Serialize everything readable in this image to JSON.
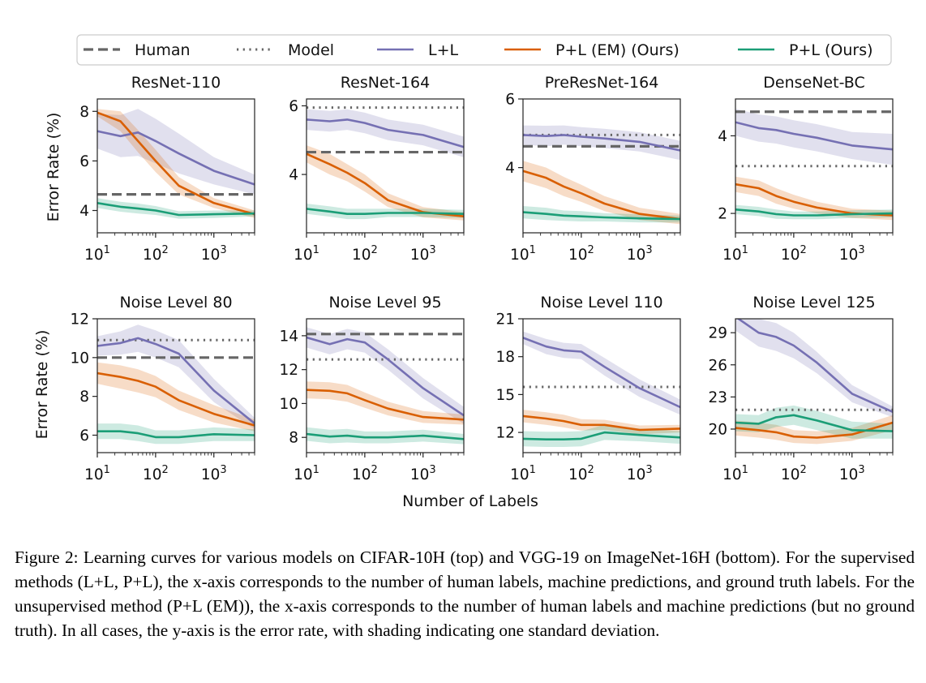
{
  "legend": {
    "entries": [
      {
        "label": "Human",
        "style": "dashed",
        "color": "#666666"
      },
      {
        "label": "Model",
        "style": "dotted",
        "color": "#666666"
      },
      {
        "label": "L+L",
        "style": "solid",
        "color": "#7570b3"
      },
      {
        "label": "P+L (EM) (Ours)",
        "style": "solid",
        "color": "#d95f02"
      },
      {
        "label": "P+L (Ours)",
        "style": "solid",
        "color": "#1b9e77"
      }
    ]
  },
  "axis_labels": {
    "y": "Error Rate (%)",
    "x": "Number of Labels"
  },
  "x_ticks": [
    "10",
    "10",
    "10"
  ],
  "x_tick_exponents": [
    "1",
    "2",
    "3"
  ],
  "caption": "Figure 2: Learning curves for various models on CIFAR-10H (top) and VGG-19 on ImageNet-16H (bottom). For the supervised methods (L+L, P+L), the x-axis corresponds to the number of human labels, machine predictions, and ground truth labels. For the unsupervised method (P+L (EM)), the x-axis corresponds to the number of human labels and machine predictions (but no ground truth). In all cases, the y-axis is the error rate, with shading indicating one standard deviation.",
  "chart_data": [
    {
      "type": "line",
      "title": "ResNet-110",
      "xscale": "log",
      "xlim": [
        10,
        5000
      ],
      "ylim": [
        3.1,
        8.5
      ],
      "yticks": [
        4,
        6,
        8
      ],
      "xticks": [
        10,
        100,
        1000
      ],
      "x": [
        10,
        25,
        50,
        100,
        250,
        1000,
        5000
      ],
      "human": 4.65,
      "model": null,
      "series": [
        {
          "name": "L+L",
          "values": [
            7.2,
            7.0,
            7.15,
            6.8,
            6.3,
            5.6,
            5.05
          ],
          "std": [
            0.7,
            0.85,
            0.95,
            0.9,
            0.8,
            0.55,
            0.4
          ]
        },
        {
          "name": "P+L (EM) (Ours)",
          "values": [
            7.95,
            7.6,
            6.8,
            6.0,
            5.0,
            4.3,
            3.85
          ],
          "std": [
            0.15,
            0.4,
            0.45,
            0.45,
            0.35,
            0.2,
            0.15
          ]
        },
        {
          "name": "P+L (Ours)",
          "values": [
            4.3,
            4.15,
            4.08,
            4.0,
            3.82,
            3.85,
            3.88
          ],
          "std": [
            0.2,
            0.2,
            0.2,
            0.18,
            0.15,
            0.15,
            0.12
          ]
        }
      ]
    },
    {
      "type": "line",
      "title": "ResNet-164",
      "xscale": "log",
      "xlim": [
        10,
        5000
      ],
      "ylim": [
        2.3,
        6.2
      ],
      "yticks": [
        4,
        6
      ],
      "xticks": [
        10,
        100,
        1000
      ],
      "x": [
        10,
        25,
        50,
        100,
        250,
        1000,
        5000
      ],
      "human": 4.65,
      "model": 5.95,
      "series": [
        {
          "name": "L+L",
          "values": [
            5.6,
            5.55,
            5.6,
            5.5,
            5.3,
            5.15,
            4.8
          ],
          "std": [
            0.3,
            0.3,
            0.3,
            0.3,
            0.3,
            0.3,
            0.3
          ]
        },
        {
          "name": "P+L (EM) (Ours)",
          "values": [
            4.6,
            4.3,
            4.05,
            3.75,
            3.25,
            2.9,
            2.78
          ],
          "std": [
            0.25,
            0.3,
            0.25,
            0.25,
            0.2,
            0.15,
            0.12
          ]
        },
        {
          "name": "P+L (Ours)",
          "values": [
            3.0,
            2.92,
            2.85,
            2.85,
            2.88,
            2.88,
            2.85
          ],
          "std": [
            0.15,
            0.15,
            0.15,
            0.15,
            0.12,
            0.12,
            0.12
          ]
        }
      ]
    },
    {
      "type": "line",
      "title": "PreResNet-164",
      "xscale": "log",
      "xlim": [
        10,
        5000
      ],
      "ylim": [
        2.1,
        6.0
      ],
      "yticks": [
        4,
        6
      ],
      "xticks": [
        10,
        100,
        1000
      ],
      "x": [
        10,
        25,
        50,
        100,
        250,
        1000,
        5000
      ],
      "human": 4.62,
      "model": 4.95,
      "series": [
        {
          "name": "L+L",
          "values": [
            4.95,
            4.92,
            4.95,
            4.9,
            4.85,
            4.75,
            4.5
          ],
          "std": [
            0.28,
            0.3,
            0.28,
            0.28,
            0.28,
            0.28,
            0.28
          ]
        },
        {
          "name": "P+L (EM) (Ours)",
          "values": [
            3.9,
            3.7,
            3.45,
            3.25,
            2.95,
            2.65,
            2.5
          ],
          "std": [
            0.3,
            0.3,
            0.28,
            0.25,
            0.22,
            0.18,
            0.15
          ]
        },
        {
          "name": "P+L (Ours)",
          "values": [
            2.7,
            2.65,
            2.6,
            2.58,
            2.55,
            2.52,
            2.5
          ],
          "std": [
            0.18,
            0.18,
            0.15,
            0.15,
            0.12,
            0.12,
            0.1
          ]
        }
      ]
    },
    {
      "type": "line",
      "title": "DenseNet-BC",
      "xscale": "log",
      "xlim": [
        10,
        5000
      ],
      "ylim": [
        1.5,
        4.95
      ],
      "yticks": [
        2,
        4
      ],
      "xticks": [
        10,
        100,
        1000
      ],
      "x": [
        10,
        25,
        50,
        100,
        250,
        1000,
        5000
      ],
      "human": 4.62,
      "model": 3.22,
      "series": [
        {
          "name": "L+L",
          "values": [
            4.35,
            4.2,
            4.15,
            4.05,
            3.95,
            3.75,
            3.65
          ],
          "std": [
            0.35,
            0.35,
            0.35,
            0.35,
            0.35,
            0.35,
            0.4
          ]
        },
        {
          "name": "P+L (EM) (Ours)",
          "values": [
            2.75,
            2.65,
            2.45,
            2.3,
            2.15,
            2.0,
            1.95
          ],
          "std": [
            0.2,
            0.2,
            0.2,
            0.18,
            0.15,
            0.12,
            0.12
          ]
        },
        {
          "name": "P+L (Ours)",
          "values": [
            2.1,
            2.05,
            1.98,
            1.95,
            1.95,
            1.98,
            2.0
          ],
          "std": [
            0.12,
            0.12,
            0.12,
            0.1,
            0.1,
            0.1,
            0.1
          ]
        }
      ]
    },
    {
      "type": "line",
      "title": "Noise Level 80",
      "xscale": "log",
      "xlim": [
        10,
        5000
      ],
      "ylim": [
        5.1,
        12.0
      ],
      "yticks": [
        6,
        8,
        10,
        12
      ],
      "xticks": [
        10,
        100,
        1000
      ],
      "x": [
        10,
        25,
        50,
        100,
        250,
        1000,
        5000
      ],
      "human": 10.0,
      "model": 10.9,
      "series": [
        {
          "name": "L+L",
          "values": [
            10.6,
            10.75,
            11.0,
            10.7,
            10.2,
            8.3,
            6.6
          ],
          "std": [
            0.5,
            0.6,
            0.7,
            0.7,
            0.7,
            0.6,
            0.3
          ]
        },
        {
          "name": "P+L (EM) (Ours)",
          "values": [
            9.2,
            9.0,
            8.8,
            8.5,
            7.8,
            7.1,
            6.5
          ],
          "std": [
            0.55,
            0.6,
            0.6,
            0.55,
            0.5,
            0.45,
            0.3
          ]
        },
        {
          "name": "P+L (Ours)",
          "values": [
            6.2,
            6.2,
            6.1,
            5.9,
            5.9,
            6.05,
            6.0
          ],
          "std": [
            0.4,
            0.4,
            0.4,
            0.35,
            0.35,
            0.35,
            0.3
          ]
        }
      ]
    },
    {
      "type": "line",
      "title": "Noise Level 95",
      "xscale": "log",
      "xlim": [
        10,
        5000
      ],
      "ylim": [
        7.1,
        15.0
      ],
      "yticks": [
        8,
        10,
        12,
        14
      ],
      "xticks": [
        10,
        100,
        1000
      ],
      "x": [
        10,
        25,
        50,
        100,
        250,
        1000,
        5000
      ],
      "human": 14.1,
      "model": 12.6,
      "series": [
        {
          "name": "L+L",
          "values": [
            13.9,
            13.5,
            13.8,
            13.6,
            12.6,
            10.9,
            9.3
          ],
          "std": [
            0.6,
            0.6,
            0.6,
            0.6,
            0.6,
            0.6,
            0.5
          ]
        },
        {
          "name": "P+L (EM) (Ours)",
          "values": [
            10.8,
            10.75,
            10.6,
            10.2,
            9.7,
            9.2,
            9.05
          ],
          "std": [
            0.5,
            0.5,
            0.5,
            0.45,
            0.4,
            0.35,
            0.3
          ]
        },
        {
          "name": "P+L (Ours)",
          "values": [
            8.2,
            8.05,
            8.1,
            8.0,
            8.0,
            8.1,
            7.9
          ],
          "std": [
            0.4,
            0.4,
            0.4,
            0.35,
            0.35,
            0.35,
            0.3
          ]
        }
      ]
    },
    {
      "type": "line",
      "title": "Noise Level 110",
      "xscale": "log",
      "xlim": [
        10,
        5000
      ],
      "ylim": [
        10.4,
        21.0
      ],
      "yticks": [
        12,
        15,
        18,
        21
      ],
      "xticks": [
        10,
        100,
        1000
      ],
      "x": [
        10,
        25,
        50,
        100,
        250,
        1000,
        5000
      ],
      "human": null,
      "model": 15.6,
      "series": [
        {
          "name": "L+L",
          "values": [
            19.5,
            18.8,
            18.5,
            18.4,
            17.2,
            15.5,
            14.0
          ],
          "std": [
            0.5,
            0.6,
            0.6,
            0.6,
            0.7,
            0.7,
            0.6
          ]
        },
        {
          "name": "P+L (EM) (Ours)",
          "values": [
            13.3,
            13.1,
            12.9,
            12.6,
            12.6,
            12.2,
            12.3
          ],
          "std": [
            0.5,
            0.5,
            0.5,
            0.45,
            0.4,
            0.35,
            0.3
          ]
        },
        {
          "name": "P+L (Ours)",
          "values": [
            11.5,
            11.45,
            11.45,
            11.5,
            12.0,
            11.8,
            11.6
          ],
          "std": [
            0.6,
            0.6,
            0.6,
            0.6,
            0.6,
            0.5,
            0.5
          ]
        }
      ]
    },
    {
      "type": "line",
      "title": "Noise Level 125",
      "xscale": "log",
      "xlim": [
        10,
        5000
      ],
      "ylim": [
        17.8,
        30.3
      ],
      "yticks": [
        20,
        23,
        26,
        29
      ],
      "xticks": [
        10,
        100,
        1000
      ],
      "x": [
        10,
        25,
        50,
        100,
        250,
        1000,
        5000
      ],
      "human": null,
      "model": 21.8,
      "series": [
        {
          "name": "L+L",
          "values": [
            30.5,
            29.0,
            28.6,
            27.8,
            26.2,
            23.3,
            21.6
          ],
          "std": [
            1.3,
            1.3,
            1.3,
            1.2,
            1.0,
            0.8,
            0.5
          ]
        },
        {
          "name": "P+L (EM) (Ours)",
          "values": [
            20.1,
            19.9,
            19.7,
            19.3,
            19.2,
            19.5,
            20.6
          ],
          "std": [
            0.7,
            0.7,
            0.7,
            0.6,
            0.6,
            0.6,
            0.7
          ]
        },
        {
          "name": "P+L (Ours)",
          "values": [
            20.6,
            20.5,
            21.1,
            21.3,
            20.8,
            19.9,
            19.8
          ],
          "std": [
            0.8,
            0.8,
            0.9,
            0.9,
            0.9,
            0.8,
            0.7
          ]
        }
      ]
    }
  ]
}
